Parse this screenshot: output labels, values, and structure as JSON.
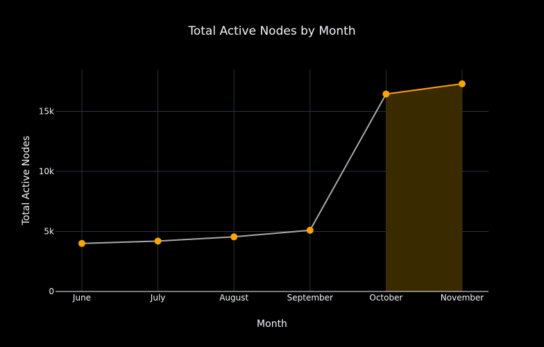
{
  "chart_data": {
    "type": "line",
    "title": "Total Active Nodes by Month",
    "xlabel": "Month",
    "ylabel": "Total Active Nodes",
    "categories": [
      "June",
      "July",
      "August",
      "September",
      "October",
      "November"
    ],
    "values": [
      4000,
      4200,
      4550,
      5100,
      16450,
      17300
    ],
    "ylim": [
      0,
      18500
    ],
    "yticks": [
      0,
      5000,
      10000,
      15000
    ],
    "ytick_labels": [
      "0",
      "5k",
      "10k",
      "15k"
    ],
    "grid": true,
    "highlight_range": [
      "October",
      "November"
    ],
    "colors": {
      "background": "#000000",
      "grid": "#283442",
      "base_line": "#aaaaaa",
      "highlight_line": "#ffa500",
      "marker": "#ffa500",
      "highlight_fill": "#3a2a00",
      "axis_line": "#f2f5fa",
      "text": "#f2f5fa"
    }
  }
}
